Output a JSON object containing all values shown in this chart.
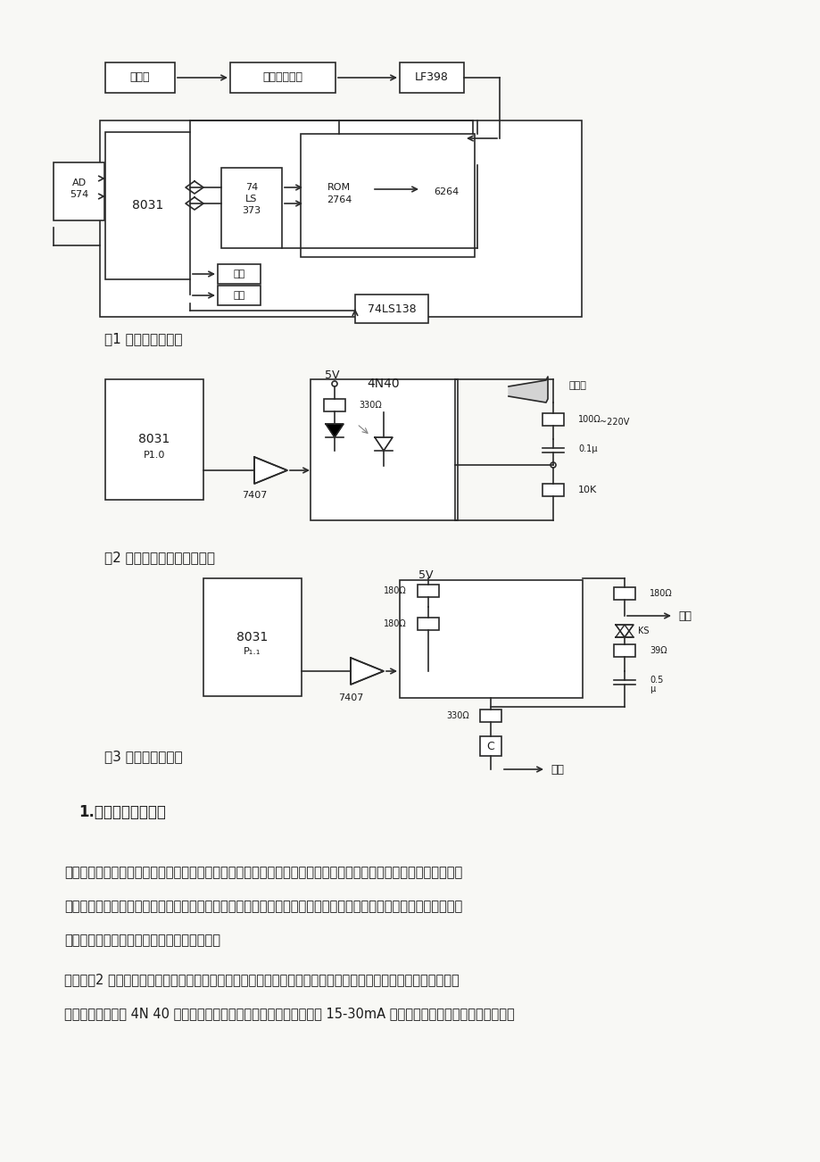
{
  "bg_color": "#f8f8f5",
  "line_color": "#2a2a2a",
  "text_color": "#1a1a1a",
  "fig_width": 9.2,
  "fig_height": 13.02,
  "diagram1_caption": "图1 系统电路原理图",
  "diagram2_caption": "图2 不电耦合器驱动接口电路",
  "diagram3_caption": "图3 交流接触器接口",
  "section_title": "1.报警接口电路设计",
  "para1_lines": [
    "单片机处理完数据后，发出控制信号控制外电路工作，开关型驱动接口中单片机控制输出的信号是开关量，有发光二",
    "极管驱动接口，光电耦合器驱动接口，液晶显示器驱动接口，晶闸管输出型驱动接口和继电器型驱动接口。控制扬声",
    "器采用的是晶闸管输出型光电耦合驱动接口。"
  ],
  "para2_lines": [
    "电路如图2 所示。晶闸管输出型光电耦合器的输出端是光敏晶闸管。当光电耦合器的输入端有一定的电流流入时，",
    "晶闸管导通。采用 4N 40 单相晶闸管输出型光电耦合器，当输入端有 15-30mA 的电流时输出端的晶闸管导通。输出"
  ]
}
